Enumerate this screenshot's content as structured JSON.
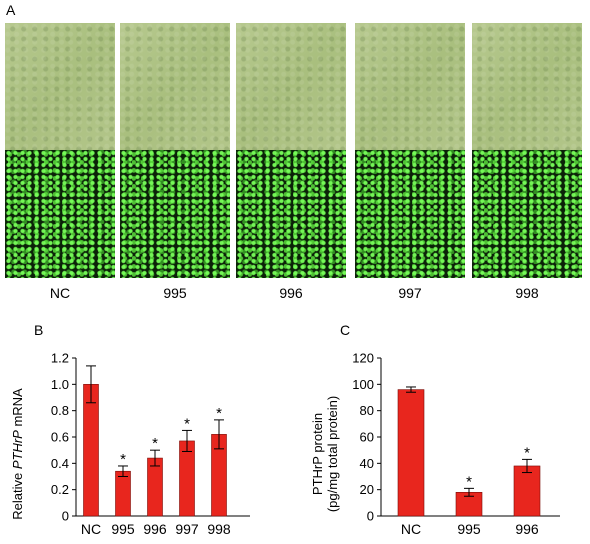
{
  "panel_labels": {
    "a": "A",
    "b": "B",
    "c": "C"
  },
  "micrograph_labels": [
    "NC",
    "995",
    "996",
    "997",
    "998"
  ],
  "chart_data": [
    {
      "type": "bar",
      "categories": [
        "NC",
        "995",
        "996",
        "997",
        "998"
      ],
      "values": [
        1.0,
        0.34,
        0.44,
        0.57,
        0.62
      ],
      "errors": [
        0.14,
        0.04,
        0.06,
        0.08,
        0.11
      ],
      "significance": [
        "",
        "*",
        "*",
        "*",
        "*"
      ],
      "ylabel_prefix": "Relative ",
      "ylabel_italic": "PTHrP",
      "ylabel_suffix": " mRNA",
      "ylim": [
        0,
        1.2
      ],
      "yticks": [
        "0",
        "0.2",
        "0.4",
        "0.6",
        "0.8",
        "1.0",
        "1.2"
      ],
      "bar_color": "#e8261e"
    },
    {
      "type": "bar",
      "categories": [
        "NC",
        "995",
        "996"
      ],
      "values": [
        96,
        18,
        38
      ],
      "errors": [
        2,
        3,
        5
      ],
      "significance": [
        "",
        "*",
        "*"
      ],
      "ylabel_line1": "PTHrP protein",
      "ylabel_line2": "(pg/mg total protein)",
      "ylim": [
        0,
        120
      ],
      "yticks": [
        "0",
        "20",
        "40",
        "60",
        "80",
        "100",
        "120"
      ],
      "bar_color": "#e8261e"
    }
  ]
}
